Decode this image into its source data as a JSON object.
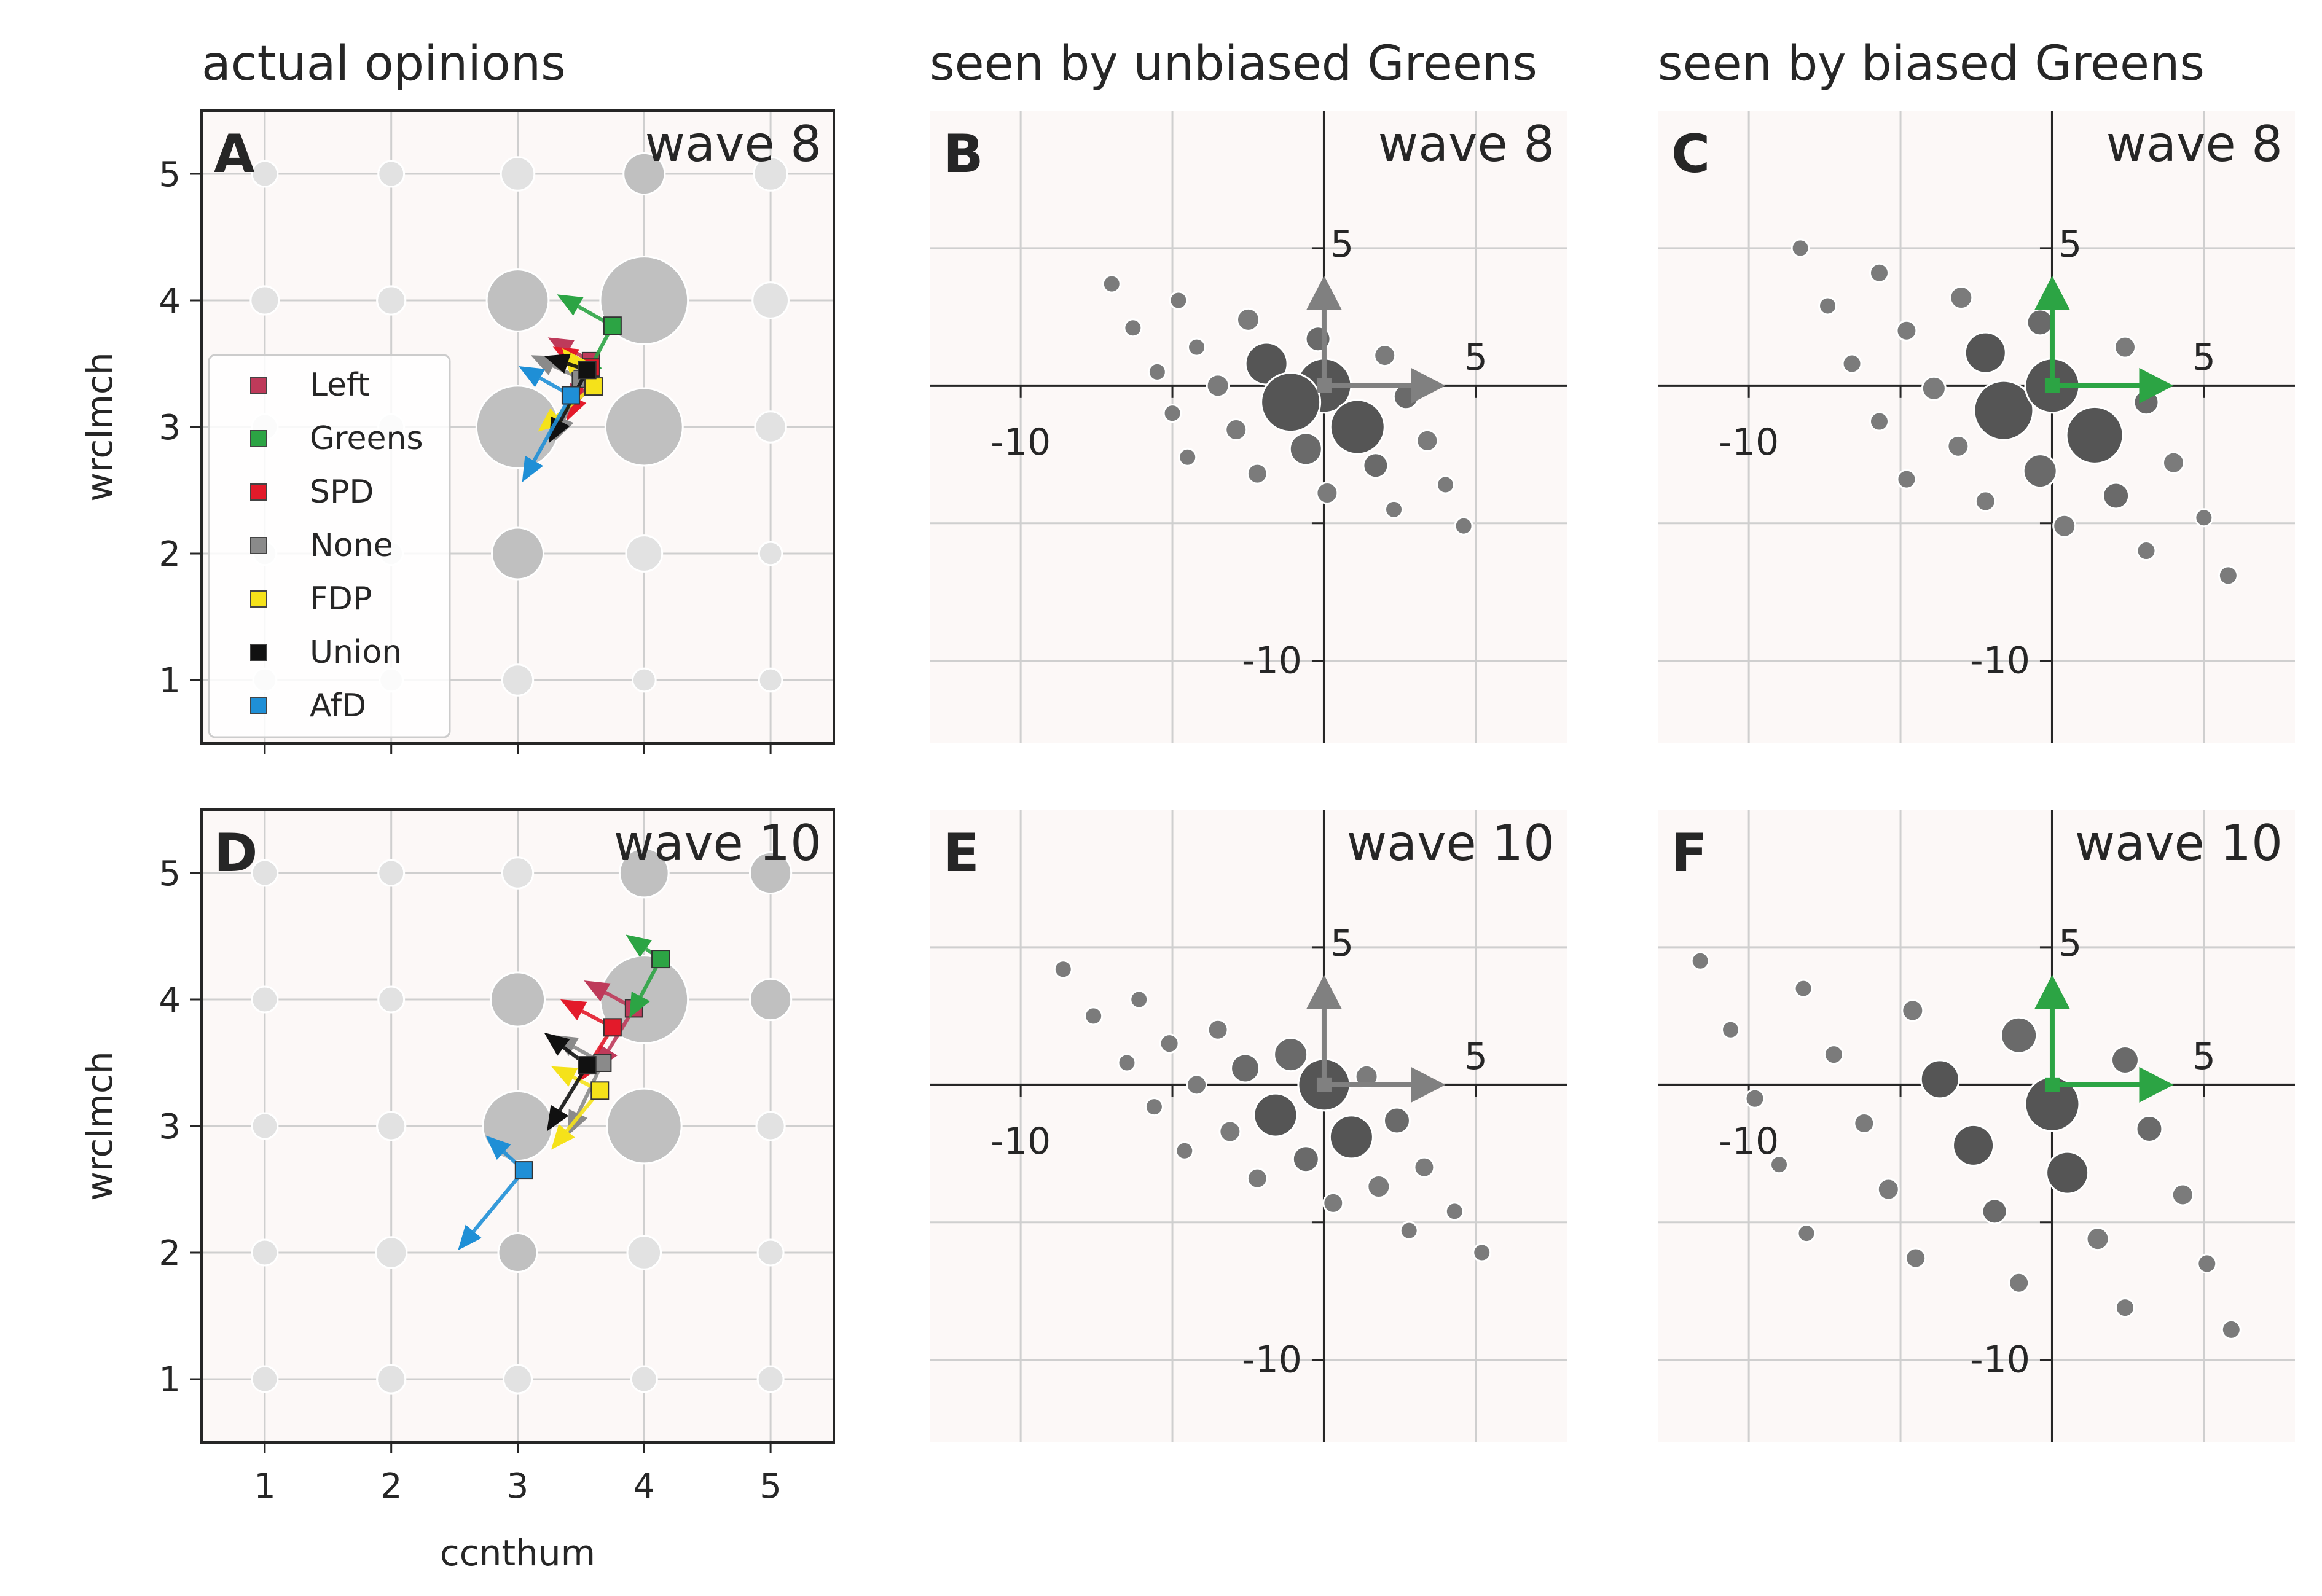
{
  "column_titles": [
    "actual opinions",
    "seen by unbiased Greens",
    "seen by biased Greens"
  ],
  "colors": {
    "Left": "#be3a5a",
    "Greens": "#2ca444",
    "SPD": "#e31a2a",
    "None": "#8a8a8a",
    "FDP": "#f5e21a",
    "Union": "#111111",
    "AfD": "#1f8fd6",
    "background": "#fcf8f7",
    "grid": "#cfcfcf",
    "bubble_actual": "#c0c0c0",
    "bubble_dark": "#5a5a5a"
  },
  "chart_data": [
    {
      "panel": "A",
      "type": "scatter",
      "wave": "wave 8",
      "xlabel": "",
      "ylabel": "wrclmch",
      "xlim": [
        0.5,
        5.5
      ],
      "ylim": [
        0.5,
        5.5
      ],
      "xticks": [
        "1",
        "2",
        "3",
        "4",
        "5"
      ],
      "yticks": [
        "1",
        "2",
        "3",
        "4",
        "5"
      ],
      "grid": true,
      "legend_position": "lower-left",
      "bubbles": [
        {
          "x": 1,
          "y": 5,
          "r": 10
        },
        {
          "x": 2,
          "y": 5,
          "r": 10
        },
        {
          "x": 3,
          "y": 5,
          "r": 13
        },
        {
          "x": 4,
          "y": 5,
          "r": 16
        },
        {
          "x": 5,
          "y": 5,
          "r": 13
        },
        {
          "x": 1,
          "y": 4,
          "r": 11
        },
        {
          "x": 2,
          "y": 4,
          "r": 11
        },
        {
          "x": 3,
          "y": 4,
          "r": 24
        },
        {
          "x": 4,
          "y": 4,
          "r": 34
        },
        {
          "x": 5,
          "y": 4,
          "r": 14
        },
        {
          "x": 1,
          "y": 3,
          "r": 10
        },
        {
          "x": 2,
          "y": 3,
          "r": 10
        },
        {
          "x": 3,
          "y": 3,
          "r": 32
        },
        {
          "x": 4,
          "y": 3,
          "r": 30
        },
        {
          "x": 5,
          "y": 3,
          "r": 12
        },
        {
          "x": 1,
          "y": 2,
          "r": 9
        },
        {
          "x": 2,
          "y": 2,
          "r": 9
        },
        {
          "x": 3,
          "y": 2,
          "r": 20
        },
        {
          "x": 4,
          "y": 2,
          "r": 14
        },
        {
          "x": 5,
          "y": 2,
          "r": 9
        },
        {
          "x": 1,
          "y": 1,
          "r": 9
        },
        {
          "x": 2,
          "y": 1,
          "r": 9
        },
        {
          "x": 3,
          "y": 1,
          "r": 12
        },
        {
          "x": 4,
          "y": 1,
          "r": 9
        },
        {
          "x": 5,
          "y": 1,
          "r": 9
        }
      ],
      "series": [
        {
          "name": "Left",
          "x": 3.58,
          "y": 3.52,
          "dx": -0.62,
          "dy": 0.34,
          "dx2": -0.3,
          "dy2": -0.7
        },
        {
          "name": "Greens",
          "x": 3.75,
          "y": 3.8,
          "dx": -0.8,
          "dy": 0.45,
          "dx2": -0.45,
          "dy2": -0.85
        },
        {
          "name": "SPD",
          "x": 3.58,
          "y": 3.47,
          "dx": -0.55,
          "dy": 0.3,
          "dx2": -0.35,
          "dy2": -0.77
        },
        {
          "name": "None",
          "x": 3.5,
          "y": 3.38,
          "dx": -0.72,
          "dy": 0.34,
          "dx2": -0.38,
          "dy2": -0.9
        },
        {
          "name": "FDP",
          "x": 3.6,
          "y": 3.32,
          "dx": -0.45,
          "dy": 0.55,
          "dx2": -0.8,
          "dy2": -0.65
        },
        {
          "name": "Union",
          "x": 3.55,
          "y": 3.45,
          "dx": -0.62,
          "dy": 0.2,
          "dx2": -0.55,
          "dy2": -1.05
        },
        {
          "name": "AfD",
          "x": 3.42,
          "y": 3.25,
          "dx": -0.75,
          "dy": 0.42,
          "dx2": -0.7,
          "dy2": -1.25
        }
      ]
    },
    {
      "panel": "B",
      "type": "scatter",
      "wave": "wave 8",
      "xlim": [
        -13,
        8
      ],
      "ylim": [
        -13,
        10
      ],
      "axis_tick_labels": {
        "x": [
          "-10",
          "5"
        ],
        "y": [
          "5",
          "-10"
        ]
      },
      "grid": true,
      "arrows": [
        {
          "dx": 4,
          "dy": 0,
          "color": "#808080"
        },
        {
          "dx": 0,
          "dy": 4,
          "color": "#808080"
        }
      ],
      "points": [
        {
          "x": -7,
          "y": 3.7,
          "r": 14
        },
        {
          "x": -6.3,
          "y": 2.1,
          "r": 14
        },
        {
          "x": -4.8,
          "y": 3.1,
          "r": 14
        },
        {
          "x": -4.2,
          "y": 1.4,
          "r": 14
        },
        {
          "x": -5.5,
          "y": 0.5,
          "r": 14
        },
        {
          "x": -2.5,
          "y": 2.4,
          "r": 18
        },
        {
          "x": -1.9,
          "y": 0.8,
          "r": 34
        },
        {
          "x": -0.2,
          "y": 1.7,
          "r": 20
        },
        {
          "x": 0,
          "y": 0,
          "r": 44
        },
        {
          "x": -1.1,
          "y": -0.6,
          "r": 48
        },
        {
          "x": 1.1,
          "y": -1.5,
          "r": 44
        },
        {
          "x": 2,
          "y": 1.1,
          "r": 17
        },
        {
          "x": 2.7,
          "y": -0.4,
          "r": 20
        },
        {
          "x": -3.5,
          "y": 0,
          "r": 18
        },
        {
          "x": -5,
          "y": -1,
          "r": 14
        },
        {
          "x": -2.9,
          "y": -1.6,
          "r": 17
        },
        {
          "x": -0.6,
          "y": -2.3,
          "r": 26
        },
        {
          "x": 1.7,
          "y": -2.9,
          "r": 20
        },
        {
          "x": 3.4,
          "y": -2,
          "r": 17
        },
        {
          "x": -4.5,
          "y": -2.6,
          "r": 14
        },
        {
          "x": -2.2,
          "y": -3.2,
          "r": 16
        },
        {
          "x": 0.1,
          "y": -3.9,
          "r": 17
        },
        {
          "x": 2.3,
          "y": -4.5,
          "r": 14
        },
        {
          "x": 4,
          "y": -3.6,
          "r": 14
        },
        {
          "x": 4.6,
          "y": -5.1,
          "r": 14
        }
      ]
    },
    {
      "panel": "C",
      "type": "scatter",
      "wave": "wave 8",
      "xlim": [
        -13,
        8
      ],
      "ylim": [
        -13,
        10
      ],
      "axis_tick_labels": {
        "x": [
          "-10",
          "5"
        ],
        "y": [
          "5",
          "-10"
        ]
      },
      "grid": true,
      "arrows": [
        {
          "dx": 4,
          "dy": 0,
          "color": "#2ca444"
        },
        {
          "dx": 0,
          "dy": 4,
          "color": "#2ca444"
        }
      ],
      "points": [
        {
          "x": -8.3,
          "y": 5,
          "r": 14
        },
        {
          "x": -7.4,
          "y": 2.9,
          "r": 14
        },
        {
          "x": -5.7,
          "y": 4.1,
          "r": 15
        },
        {
          "x": -6.6,
          "y": 0.8,
          "r": 15
        },
        {
          "x": -4.8,
          "y": 2,
          "r": 16
        },
        {
          "x": -3,
          "y": 3.2,
          "r": 18
        },
        {
          "x": -2.2,
          "y": 1.2,
          "r": 33
        },
        {
          "x": -0.4,
          "y": 2.3,
          "r": 21
        },
        {
          "x": -3.9,
          "y": -0.1,
          "r": 19
        },
        {
          "x": -1.6,
          "y": -0.9,
          "r": 48
        },
        {
          "x": 0,
          "y": 0,
          "r": 44
        },
        {
          "x": 1.4,
          "y": -1.8,
          "r": 46
        },
        {
          "x": 2.4,
          "y": 1.4,
          "r": 17
        },
        {
          "x": 3.1,
          "y": -0.6,
          "r": 20
        },
        {
          "x": -5.7,
          "y": -1.3,
          "r": 15
        },
        {
          "x": -3.1,
          "y": -2.2,
          "r": 17
        },
        {
          "x": -0.4,
          "y": -3.1,
          "r": 27
        },
        {
          "x": 2.1,
          "y": -4,
          "r": 21
        },
        {
          "x": 4,
          "y": -2.8,
          "r": 17
        },
        {
          "x": -4.8,
          "y": -3.4,
          "r": 15
        },
        {
          "x": -2.2,
          "y": -4.2,
          "r": 16
        },
        {
          "x": 0.4,
          "y": -5.1,
          "r": 18
        },
        {
          "x": 3.1,
          "y": -6,
          "r": 15
        },
        {
          "x": 5,
          "y": -4.8,
          "r": 14
        },
        {
          "x": 5.8,
          "y": -6.9,
          "r": 15
        }
      ]
    },
    {
      "panel": "D",
      "type": "scatter",
      "wave": "wave 10",
      "xlabel": "ccnthum",
      "ylabel": "wrclmch",
      "xlim": [
        0.5,
        5.5
      ],
      "ylim": [
        0.5,
        5.5
      ],
      "xticks": [
        "1",
        "2",
        "3",
        "4",
        "5"
      ],
      "yticks": [
        "1",
        "2",
        "3",
        "4",
        "5"
      ],
      "grid": true,
      "bubbles": [
        {
          "x": 1,
          "y": 5,
          "r": 10
        },
        {
          "x": 2,
          "y": 5,
          "r": 10
        },
        {
          "x": 3,
          "y": 5,
          "r": 12
        },
        {
          "x": 4,
          "y": 5,
          "r": 19
        },
        {
          "x": 5,
          "y": 5,
          "r": 16
        },
        {
          "x": 1,
          "y": 4,
          "r": 10
        },
        {
          "x": 2,
          "y": 4,
          "r": 10
        },
        {
          "x": 3,
          "y": 4,
          "r": 21
        },
        {
          "x": 4,
          "y": 4,
          "r": 34
        },
        {
          "x": 5,
          "y": 4,
          "r": 16
        },
        {
          "x": 1,
          "y": 3,
          "r": 10
        },
        {
          "x": 2,
          "y": 3,
          "r": 11
        },
        {
          "x": 3,
          "y": 3,
          "r": 27
        },
        {
          "x": 4,
          "y": 3,
          "r": 29
        },
        {
          "x": 5,
          "y": 3,
          "r": 11
        },
        {
          "x": 1,
          "y": 2,
          "r": 10
        },
        {
          "x": 2,
          "y": 2,
          "r": 12
        },
        {
          "x": 3,
          "y": 2,
          "r": 15
        },
        {
          "x": 4,
          "y": 2,
          "r": 13
        },
        {
          "x": 5,
          "y": 2,
          "r": 10
        },
        {
          "x": 1,
          "y": 1,
          "r": 10
        },
        {
          "x": 2,
          "y": 1,
          "r": 11
        },
        {
          "x": 3,
          "y": 1,
          "r": 11
        },
        {
          "x": 4,
          "y": 1,
          "r": 10
        },
        {
          "x": 5,
          "y": 1,
          "r": 10
        }
      ],
      "series": [
        {
          "name": "Left",
          "x": 3.92,
          "y": 3.93,
          "dx": -0.72,
          "dy": 0.4,
          "dx2": -0.55,
          "dy2": -0.9
        },
        {
          "name": "Greens",
          "x": 4.13,
          "y": 4.32,
          "dx": -0.5,
          "dy": 0.35,
          "dx2": -0.45,
          "dy2": -0.85
        },
        {
          "name": "SPD",
          "x": 3.75,
          "y": 3.78,
          "dx": -0.75,
          "dy": 0.4,
          "dx2": -0.5,
          "dy2": -0.8
        },
        {
          "name": "None",
          "x": 3.67,
          "y": 3.5,
          "dx": -0.72,
          "dy": 0.4,
          "dx2": -0.5,
          "dy2": -1.05
        },
        {
          "name": "FDP",
          "x": 3.65,
          "y": 3.28,
          "dx": -0.7,
          "dy": 0.35,
          "dx2": -0.7,
          "dy2": -0.85
        },
        {
          "name": "Union",
          "x": 3.55,
          "y": 3.48,
          "dx": -0.62,
          "dy": 0.47,
          "dx2": -0.58,
          "dy2": -0.95
        },
        {
          "name": "AfD",
          "x": 3.05,
          "y": 2.65,
          "dx": -0.55,
          "dy": 0.5,
          "dx2": -0.95,
          "dy2": -1.15
        }
      ]
    },
    {
      "panel": "E",
      "type": "scatter",
      "wave": "wave 10",
      "xlim": [
        -13,
        8
      ],
      "ylim": [
        -13,
        10
      ],
      "axis_tick_labels": {
        "x": [
          "-10",
          "5"
        ],
        "y": [
          "5",
          "-10"
        ]
      },
      "grid": true,
      "arrows": [
        {
          "dx": 4,
          "dy": 0,
          "color": "#808080"
        },
        {
          "dx": 0,
          "dy": 4,
          "color": "#808080"
        }
      ],
      "points": [
        {
          "x": -8.6,
          "y": 4.2,
          "r": 14
        },
        {
          "x": -7.6,
          "y": 2.5,
          "r": 14
        },
        {
          "x": -6.1,
          "y": 3.1,
          "r": 14
        },
        {
          "x": -6.5,
          "y": 0.8,
          "r": 14
        },
        {
          "x": -5.1,
          "y": 1.5,
          "r": 15
        },
        {
          "x": -3.5,
          "y": 2,
          "r": 16
        },
        {
          "x": -4.2,
          "y": 0,
          "r": 16
        },
        {
          "x": -2.6,
          "y": 0.6,
          "r": 23
        },
        {
          "x": -1.1,
          "y": 1.1,
          "r": 27
        },
        {
          "x": 0,
          "y": 0,
          "r": 42
        },
        {
          "x": -1.6,
          "y": -1.1,
          "r": 35
        },
        {
          "x": 0.9,
          "y": -1.9,
          "r": 35
        },
        {
          "x": 1.4,
          "y": 0.3,
          "r": 18
        },
        {
          "x": 2.4,
          "y": -1.3,
          "r": 21
        },
        {
          "x": -5.6,
          "y": -0.8,
          "r": 14
        },
        {
          "x": -3.1,
          "y": -1.7,
          "r": 17
        },
        {
          "x": -4.6,
          "y": -2.4,
          "r": 14
        },
        {
          "x": -0.6,
          "y": -2.7,
          "r": 21
        },
        {
          "x": 1.8,
          "y": -3.7,
          "r": 18
        },
        {
          "x": 3.3,
          "y": -3,
          "r": 16
        },
        {
          "x": -2.2,
          "y": -3.4,
          "r": 16
        },
        {
          "x": 0.3,
          "y": -4.3,
          "r": 16
        },
        {
          "x": 2.8,
          "y": -5.3,
          "r": 14
        },
        {
          "x": 4.3,
          "y": -4.6,
          "r": 14
        },
        {
          "x": 5.2,
          "y": -6.1,
          "r": 14
        }
      ]
    },
    {
      "panel": "F",
      "type": "scatter",
      "wave": "wave 10",
      "xlim": [
        -13,
        8
      ],
      "ylim": [
        -13,
        10
      ],
      "axis_tick_labels": {
        "x": [
          "-10",
          "5"
        ],
        "y": [
          "5",
          "-10"
        ]
      },
      "grid": true,
      "arrows": [
        {
          "dx": 4,
          "dy": 0,
          "color": "#2ca444"
        },
        {
          "dx": 0,
          "dy": 4,
          "color": "#2ca444"
        }
      ],
      "points": [
        {
          "x": -11.6,
          "y": 4.5,
          "r": 14
        },
        {
          "x": -10.6,
          "y": 2,
          "r": 14
        },
        {
          "x": -8.2,
          "y": 3.5,
          "r": 14
        },
        {
          "x": -7.2,
          "y": 1.1,
          "r": 15
        },
        {
          "x": -4.6,
          "y": 2.7,
          "r": 17
        },
        {
          "x": -9.8,
          "y": -0.5,
          "r": 15
        },
        {
          "x": -6.2,
          "y": -1.4,
          "r": 16
        },
        {
          "x": -3.7,
          "y": 0.2,
          "r": 31
        },
        {
          "x": -1.1,
          "y": 1.8,
          "r": 29
        },
        {
          "x": 2.4,
          "y": 0.9,
          "r": 22
        },
        {
          "x": 0,
          "y": -0.7,
          "r": 44
        },
        {
          "x": -2.6,
          "y": -2.2,
          "r": 33
        },
        {
          "x": 0.5,
          "y": -3.2,
          "r": 34
        },
        {
          "x": 3.2,
          "y": -1.6,
          "r": 21
        },
        {
          "x": -9,
          "y": -2.9,
          "r": 14
        },
        {
          "x": -5.4,
          "y": -3.8,
          "r": 17
        },
        {
          "x": -1.9,
          "y": -4.6,
          "r": 20
        },
        {
          "x": 4.3,
          "y": -4,
          "r": 17
        },
        {
          "x": -8.1,
          "y": -5.4,
          "r": 14
        },
        {
          "x": -4.5,
          "y": -6.3,
          "r": 16
        },
        {
          "x": -1.1,
          "y": -7.2,
          "r": 16
        },
        {
          "x": 1.5,
          "y": -5.6,
          "r": 18
        },
        {
          "x": 2.4,
          "y": -8.1,
          "r": 15
        },
        {
          "x": 5.1,
          "y": -6.5,
          "r": 15
        },
        {
          "x": 5.9,
          "y": -8.9,
          "r": 15
        }
      ]
    }
  ]
}
